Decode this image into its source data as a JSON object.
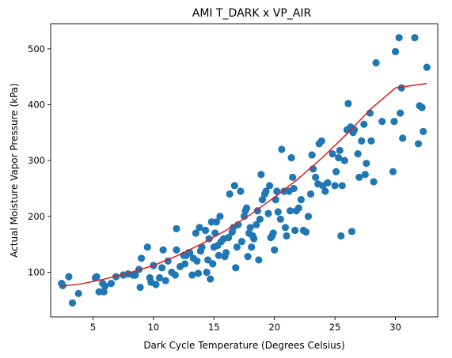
{
  "chart_data": {
    "type": "scatter",
    "title": "AMI T_DARK x VP_AIR",
    "xlabel": "Dark Cycle Temperature (Degrees Celsius)",
    "ylabel": "Actual Moisture Vapor Pressure (kPa)",
    "xlim": [
      1.5,
      33.5
    ],
    "ylim": [
      20,
      545
    ],
    "xticks": [
      5,
      10,
      15,
      20,
      25,
      30
    ],
    "yticks": [
      100,
      200,
      300,
      400,
      500
    ],
    "grid": false,
    "colors": {
      "points": "#1f77b4",
      "fit": "#e41a1c"
    },
    "points": [
      [
        2.4,
        80
      ],
      [
        2.5,
        76
      ],
      [
        3.0,
        92
      ],
      [
        3.3,
        45
      ],
      [
        3.8,
        62
      ],
      [
        5.2,
        90
      ],
      [
        5.3,
        92
      ],
      [
        5.5,
        65
      ],
      [
        5.8,
        80
      ],
      [
        5.9,
        65
      ],
      [
        6.0,
        75
      ],
      [
        6.5,
        80
      ],
      [
        6.9,
        92
      ],
      [
        7.5,
        95
      ],
      [
        7.9,
        97
      ],
      [
        8.3,
        95
      ],
      [
        8.5,
        95
      ],
      [
        8.8,
        105
      ],
      [
        8.9,
        73
      ],
      [
        9.0,
        125
      ],
      [
        9.5,
        145
      ],
      [
        9.7,
        90
      ],
      [
        9.8,
        82
      ],
      [
        10.0,
        112
      ],
      [
        10.2,
        78
      ],
      [
        10.5,
        90
      ],
      [
        10.7,
        108
      ],
      [
        10.8,
        140
      ],
      [
        11.0,
        85
      ],
      [
        11.2,
        120
      ],
      [
        11.5,
        100
      ],
      [
        11.8,
        95
      ],
      [
        11.9,
        178
      ],
      [
        11.9,
        140
      ],
      [
        12.2,
        110
      ],
      [
        12.5,
        130
      ],
      [
        12.6,
        115
      ],
      [
        12.7,
        130
      ],
      [
        12.9,
        135
      ],
      [
        13.0,
        135
      ],
      [
        13.2,
        95
      ],
      [
        13.3,
        125
      ],
      [
        13.5,
        170
      ],
      [
        13.6,
        120
      ],
      [
        13.7,
        98
      ],
      [
        13.8,
        180
      ],
      [
        13.9,
        138
      ],
      [
        14.0,
        145
      ],
      [
        14.3,
        175
      ],
      [
        14.4,
        100
      ],
      [
        14.5,
        122
      ],
      [
        14.6,
        160
      ],
      [
        14.7,
        88
      ],
      [
        14.8,
        190
      ],
      [
        14.9,
        115
      ],
      [
        15.0,
        145
      ],
      [
        15.1,
        170
      ],
      [
        15.2,
        190
      ],
      [
        15.3,
        148
      ],
      [
        15.4,
        130
      ],
      [
        15.5,
        200
      ],
      [
        15.6,
        155
      ],
      [
        15.8,
        160
      ],
      [
        15.9,
        128
      ],
      [
        16.0,
        135
      ],
      [
        16.2,
        162
      ],
      [
        16.3,
        240
      ],
      [
        16.5,
        172
      ],
      [
        16.6,
        180
      ],
      [
        16.7,
        255
      ],
      [
        16.8,
        108
      ],
      [
        16.9,
        145
      ],
      [
        17.0,
        185
      ],
      [
        17.2,
        245
      ],
      [
        17.3,
        155
      ],
      [
        17.5,
        200
      ],
      [
        17.6,
        210
      ],
      [
        17.7,
        215
      ],
      [
        17.8,
        128
      ],
      [
        17.9,
        170
      ],
      [
        18.0,
        180
      ],
      [
        18.1,
        145
      ],
      [
        18.2,
        165
      ],
      [
        18.3,
        160
      ],
      [
        18.5,
        185
      ],
      [
        18.6,
        210
      ],
      [
        18.7,
        122
      ],
      [
        18.8,
        195
      ],
      [
        18.9,
        275
      ],
      [
        19.0,
        230
      ],
      [
        19.2,
        240
      ],
      [
        19.3,
        245
      ],
      [
        19.5,
        205
      ],
      [
        19.6,
        255
      ],
      [
        19.7,
        162
      ],
      [
        19.8,
        165
      ],
      [
        19.9,
        170
      ],
      [
        20.0,
        140
      ],
      [
        20.1,
        230
      ],
      [
        20.2,
        245
      ],
      [
        20.3,
        208
      ],
      [
        20.5,
        195
      ],
      [
        20.6,
        320
      ],
      [
        20.8,
        245
      ],
      [
        20.9,
        180
      ],
      [
        21.0,
        165
      ],
      [
        21.2,
        245
      ],
      [
        21.3,
        210
      ],
      [
        21.4,
        305
      ],
      [
        21.5,
        270
      ],
      [
        21.6,
        250
      ],
      [
        21.7,
        175
      ],
      [
        21.8,
        210
      ],
      [
        22.0,
        215
      ],
      [
        22.2,
        230
      ],
      [
        22.4,
        175
      ],
      [
        22.6,
        172
      ],
      [
        22.8,
        200
      ],
      [
        23.0,
        240
      ],
      [
        23.1,
        310
      ],
      [
        23.2,
        285
      ],
      [
        23.4,
        270
      ],
      [
        23.6,
        258
      ],
      [
        23.7,
        330
      ],
      [
        23.9,
        335
      ],
      [
        24.0,
        255
      ],
      [
        24.2,
        245
      ],
      [
        24.4,
        260
      ],
      [
        24.8,
        312
      ],
      [
        25.0,
        255
      ],
      [
        25.1,
        280
      ],
      [
        25.3,
        305
      ],
      [
        25.4,
        318
      ],
      [
        25.5,
        165
      ],
      [
        25.6,
        255
      ],
      [
        25.8,
        300
      ],
      [
        26.0,
        355
      ],
      [
        26.1,
        402
      ],
      [
        26.3,
        360
      ],
      [
        26.4,
        173
      ],
      [
        26.5,
        350
      ],
      [
        26.6,
        355
      ],
      [
        26.9,
        312
      ],
      [
        27.0,
        270
      ],
      [
        27.2,
        335
      ],
      [
        27.4,
        365
      ],
      [
        27.5,
        275
      ],
      [
        27.6,
        295
      ],
      [
        27.9,
        385
      ],
      [
        28.0,
        335
      ],
      [
        28.2,
        262
      ],
      [
        28.4,
        475
      ],
      [
        28.9,
        370
      ],
      [
        29.8,
        280
      ],
      [
        29.9,
        370
      ],
      [
        30.0,
        495
      ],
      [
        30.3,
        520
      ],
      [
        30.4,
        385
      ],
      [
        30.5,
        430
      ],
      [
        30.6,
        340
      ],
      [
        31.6,
        520
      ],
      [
        31.9,
        330
      ],
      [
        32.0,
        398
      ],
      [
        32.2,
        395
      ],
      [
        32.3,
        352
      ],
      [
        32.6,
        467
      ]
    ],
    "fit_curve": [
      [
        2.4,
        75
      ],
      [
        4,
        79
      ],
      [
        6,
        88
      ],
      [
        8,
        99
      ],
      [
        10,
        112
      ],
      [
        12,
        130
      ],
      [
        14,
        151
      ],
      [
        16,
        175
      ],
      [
        18,
        203
      ],
      [
        20,
        234
      ],
      [
        22,
        268
      ],
      [
        24,
        306
      ],
      [
        26,
        348
      ],
      [
        28,
        393
      ],
      [
        30,
        430
      ],
      [
        32.6,
        438
      ]
    ]
  }
}
